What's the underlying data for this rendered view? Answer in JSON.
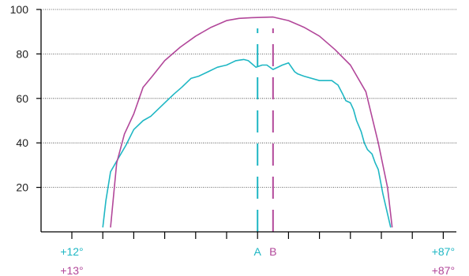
{
  "chart_data": {
    "type": "line",
    "title": "",
    "xlabel": "",
    "ylabel": "",
    "ylim": [
      0,
      100
    ],
    "xlim": [
      0,
      13
    ],
    "y_ticks": [
      "20",
      "40",
      "60",
      "80",
      "100"
    ],
    "y_tick_values": [
      20,
      40,
      60,
      80,
      100
    ],
    "x_tick_count": 14,
    "grid": "horizontal-dotted",
    "markers": [
      {
        "label": "A",
        "x": 6.0,
        "color": "#1fb7c4"
      },
      {
        "label": "B",
        "x": 6.5,
        "color": "#b2479a"
      }
    ],
    "end_labels": {
      "cyan": {
        "left": "+12°",
        "right": "+87°",
        "color": "#1fb7c4"
      },
      "magenta": {
        "left": "+13°",
        "right": "+87°",
        "color": "#b2479a"
      }
    },
    "series": [
      {
        "color": "#1fb7c4",
        "x": [
          1.0,
          1.1,
          1.25,
          1.5,
          1.75,
          2.0,
          2.3,
          2.55,
          3.0,
          3.3,
          3.55,
          3.85,
          4.1,
          4.4,
          4.7,
          4.85,
          5.0,
          5.15,
          5.3,
          5.55,
          5.7,
          5.95,
          6.15,
          6.3,
          6.5,
          6.8,
          7.0,
          7.2,
          7.3,
          7.5,
          8.0,
          8.4,
          8.5,
          8.6,
          8.75,
          8.85,
          9.0,
          9.1,
          9.2,
          9.35,
          9.45,
          9.55,
          9.7,
          9.8,
          9.9,
          10.05,
          10.3
        ],
        "y": [
          2,
          14,
          27,
          33,
          39,
          46,
          50,
          52,
          58,
          62,
          65,
          69,
          70,
          72,
          74,
          74.5,
          75,
          76,
          77,
          77.5,
          77,
          74,
          75,
          75,
          73,
          75,
          76,
          72,
          71,
          70,
          68,
          68,
          67,
          66,
          62,
          59,
          58,
          55,
          50,
          45,
          40,
          37,
          35,
          31,
          28,
          17,
          2
        ]
      },
      {
        "color": "#b2479a",
        "x": [
          1.25,
          1.45,
          1.7,
          2.0,
          2.3,
          2.6,
          3.0,
          3.5,
          4.0,
          4.5,
          5.0,
          5.4,
          5.8,
          6.2,
          6.5,
          7.0,
          7.5,
          8.0,
          8.5,
          9.0,
          9.5,
          9.9,
          10.2,
          10.35
        ],
        "y": [
          2,
          31,
          44,
          53,
          65,
          70,
          77,
          83,
          88,
          92,
          95,
          96,
          96.3,
          96.5,
          96.6,
          95,
          92,
          88,
          82,
          75,
          63,
          40,
          20,
          2
        ]
      }
    ]
  }
}
